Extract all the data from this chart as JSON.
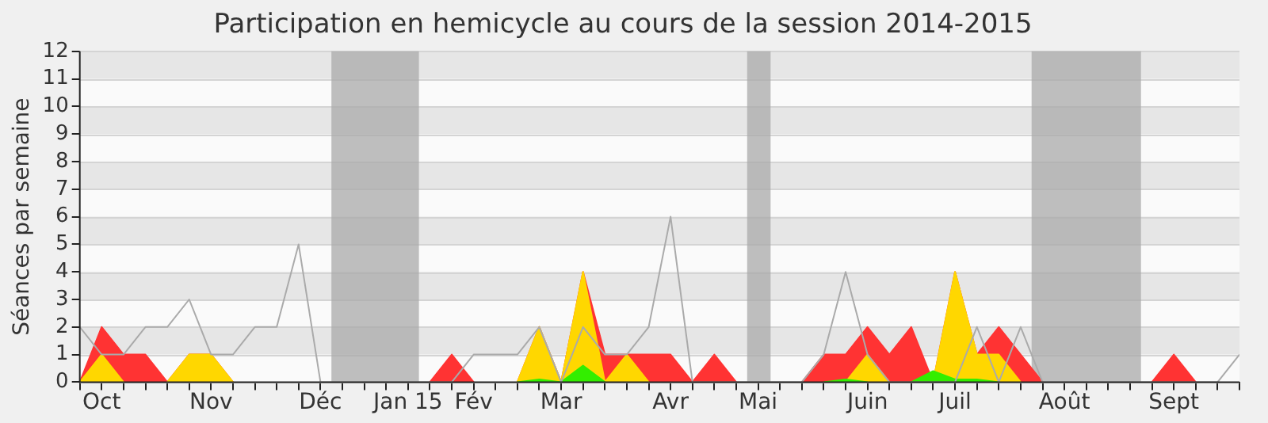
{
  "chart_data": {
    "type": "area",
    "title": "Participation en hemicycle au cours de la session 2014-2015",
    "ylabel": "Séances par semaine",
    "x": [
      "2014-09-28",
      "2014-10-05",
      "2014-10-12",
      "2014-10-19",
      "2014-10-26",
      "2014-11-02",
      "2014-11-09",
      "2014-11-16",
      "2014-11-23",
      "2014-11-30",
      "2014-12-07",
      "2014-12-14",
      "2014-12-21",
      "2014-12-28",
      "2015-01-04",
      "2015-01-11",
      "2015-01-18",
      "2015-01-25",
      "2015-02-01",
      "2015-02-08",
      "2015-02-15",
      "2015-02-22",
      "2015-03-01",
      "2015-03-08",
      "2015-03-15",
      "2015-03-22",
      "2015-03-29",
      "2015-04-05",
      "2015-04-12",
      "2015-04-19",
      "2015-04-26",
      "2015-05-03",
      "2015-05-10",
      "2015-05-17",
      "2015-05-24",
      "2015-05-31",
      "2015-06-07",
      "2015-06-14",
      "2015-06-21",
      "2015-06-28",
      "2015-07-05",
      "2015-07-12",
      "2015-07-19",
      "2015-07-26",
      "2015-08-02",
      "2015-08-09",
      "2015-08-16",
      "2015-08-23",
      "2015-08-30",
      "2015-09-06",
      "2015-09-13",
      "2015-09-20",
      "2015-09-27",
      "2015-10-04"
    ],
    "series": [
      {
        "type": "line",
        "color": "#aaaaaa",
        "values": [
          2,
          1,
          1,
          2,
          2,
          3,
          1,
          1,
          2,
          2,
          5,
          0,
          0,
          0,
          0,
          0,
          0,
          0,
          1,
          1,
          1,
          2,
          0,
          2,
          1,
          1,
          2,
          6,
          0,
          0,
          0,
          0,
          0,
          0,
          1,
          4,
          1,
          0,
          0,
          0,
          0,
          2,
          0,
          2,
          0,
          0,
          0,
          0,
          0,
          0,
          0,
          0,
          0,
          1
        ]
      },
      {
        "color": "#ff3333",
        "values": [
          0,
          2,
          1,
          1,
          0,
          1,
          1,
          0,
          null,
          null,
          null,
          null,
          null,
          null,
          null,
          null,
          0,
          1,
          0,
          null,
          0,
          2,
          0,
          4,
          1,
          1,
          1,
          1,
          0,
          1,
          0,
          null,
          null,
          0,
          1,
          1,
          2,
          1,
          2,
          0,
          4,
          1,
          2,
          1,
          0,
          null,
          null,
          null,
          null,
          0,
          1,
          0,
          null,
          null
        ]
      },
      {
        "color": "#ffd700",
        "values": [
          0,
          1,
          0,
          null,
          0,
          1,
          1,
          0,
          null,
          null,
          null,
          null,
          null,
          null,
          null,
          null,
          null,
          null,
          null,
          null,
          0,
          2,
          0,
          4,
          0,
          1,
          0,
          null,
          null,
          null,
          null,
          null,
          null,
          null,
          null,
          0,
          1,
          0,
          null,
          0,
          4,
          1,
          1,
          0,
          null,
          null,
          null,
          null,
          null,
          null,
          null,
          null,
          null,
          null
        ]
      },
      {
        "color": "#33ee00",
        "values": [
          null,
          null,
          null,
          null,
          null,
          null,
          null,
          null,
          null,
          null,
          null,
          null,
          null,
          null,
          null,
          null,
          null,
          null,
          null,
          null,
          0,
          0.1,
          0,
          0.6,
          0,
          null,
          null,
          null,
          null,
          null,
          null,
          null,
          null,
          null,
          0,
          0.1,
          0,
          null,
          0,
          0.4,
          0.1,
          0.1,
          0,
          null,
          null,
          null,
          null,
          null,
          null,
          null,
          null,
          null,
          null,
          null
        ]
      }
    ],
    "xlim": [
      "2014-09-28",
      "2015-10-04"
    ],
    "xticks": [
      {
        "value": "2014-09-28",
        "label": null
      },
      {
        "value": "2014-10-05",
        "label": "Oct"
      },
      {
        "value": "2014-10-12",
        "label": null
      },
      {
        "value": "2014-10-19",
        "label": null
      },
      {
        "value": "2014-10-26",
        "label": null
      },
      {
        "value": "2014-11-02",
        "label": null
      },
      {
        "value": "2014-11-09",
        "label": "Nov"
      },
      {
        "value": "2014-11-16",
        "label": null
      },
      {
        "value": "2014-11-23",
        "label": null
      },
      {
        "value": "2014-11-30",
        "label": null
      },
      {
        "value": "2014-12-07",
        "label": null
      },
      {
        "value": "2014-12-14",
        "label": "Déc"
      },
      {
        "value": "2014-12-21",
        "label": null
      },
      {
        "value": "2014-12-28",
        "label": null
      },
      {
        "value": "2015-01-04",
        "label": null
      },
      {
        "value": "2015-01-11",
        "label": "Jan 15"
      },
      {
        "value": "2015-01-18",
        "label": null
      },
      {
        "value": "2015-01-25",
        "label": null
      },
      {
        "value": "2015-02-01",
        "label": "Fév"
      },
      {
        "value": "2015-02-08",
        "label": null
      },
      {
        "value": "2015-02-15",
        "label": null
      },
      {
        "value": "2015-02-22",
        "label": null
      },
      {
        "value": "2015-03-01",
        "label": "Mar"
      },
      {
        "value": "2015-03-08",
        "label": null
      },
      {
        "value": "2015-03-15",
        "label": null
      },
      {
        "value": "2015-03-22",
        "label": null
      },
      {
        "value": "2015-03-29",
        "label": null
      },
      {
        "value": "2015-04-05",
        "label": "Avr"
      },
      {
        "value": "2015-04-12",
        "label": null
      },
      {
        "value": "2015-04-19",
        "label": null
      },
      {
        "value": "2015-04-26",
        "label": null
      },
      {
        "value": "2015-05-03",
        "label": "Mai"
      },
      {
        "value": "2015-05-10",
        "label": null
      },
      {
        "value": "2015-05-17",
        "label": null
      },
      {
        "value": "2015-05-24",
        "label": null
      },
      {
        "value": "2015-05-31",
        "label": null
      },
      {
        "value": "2015-06-07",
        "label": "Juin"
      },
      {
        "value": "2015-06-14",
        "label": null
      },
      {
        "value": "2015-06-21",
        "label": null
      },
      {
        "value": "2015-06-28",
        "label": null
      },
      {
        "value": "2015-07-05",
        "label": "Juil"
      },
      {
        "value": "2015-07-12",
        "label": null
      },
      {
        "value": "2015-07-19",
        "label": null
      },
      {
        "value": "2015-07-26",
        "label": null
      },
      {
        "value": "2015-08-02",
        "label": null
      },
      {
        "value": "2015-08-09",
        "label": "Août"
      },
      {
        "value": "2015-08-16",
        "label": null
      },
      {
        "value": "2015-08-23",
        "label": null
      },
      {
        "value": "2015-08-30",
        "label": null
      },
      {
        "value": "2015-09-06",
        "label": null
      },
      {
        "value": "2015-09-13",
        "label": "Sept"
      },
      {
        "value": "2015-09-20",
        "label": null
      },
      {
        "value": "2015-09-27",
        "label": null
      },
      {
        "value": "2015-10-04",
        "label": null
      }
    ],
    "ylim": [
      0,
      12
    ],
    "yticks": [
      0,
      1,
      2,
      3,
      4,
      5,
      6,
      7,
      8,
      9,
      10,
      11,
      12
    ],
    "bands": [
      {
        "axis": "x",
        "from": "2014-12-17T12:00",
        "to": "2015-01-14T12:00",
        "color": "#aaaaaa"
      },
      {
        "axis": "x",
        "from": "2015-04-29T12:00",
        "to": "2015-05-07",
        "color": "#aaaaaa"
      },
      {
        "axis": "x",
        "from": "2015-07-29T12:00",
        "to": "2015-09-02T12:00",
        "color": "#aaaaaa"
      }
    ],
    "grid": "y",
    "legend": false,
    "marker": "none"
  }
}
